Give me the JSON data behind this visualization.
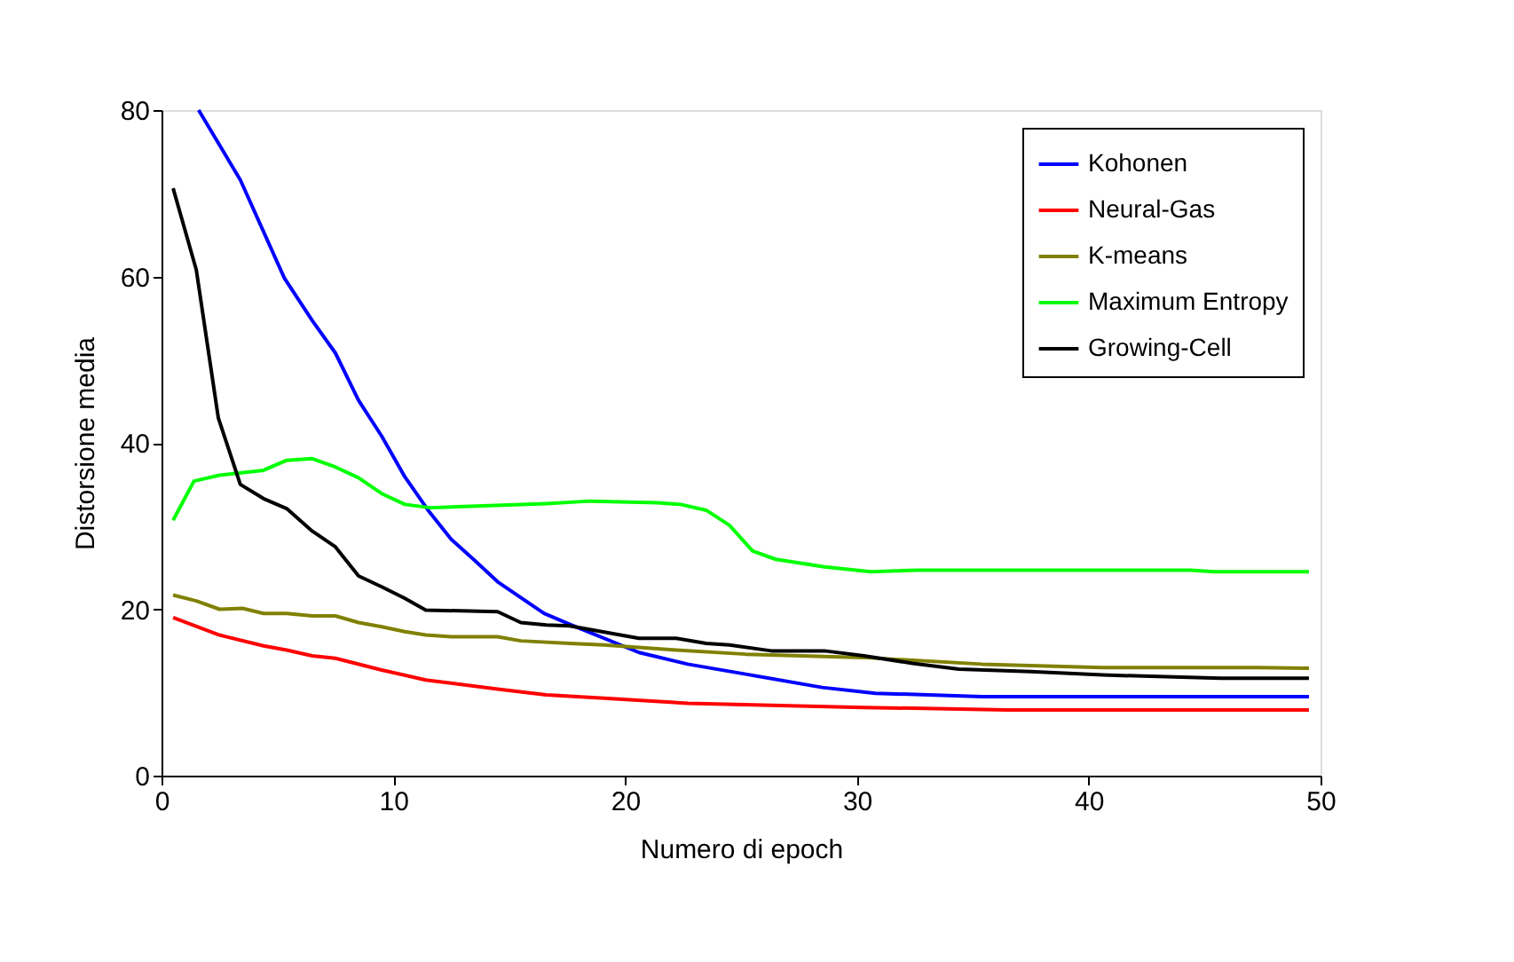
{
  "chart_data": {
    "type": "line",
    "xlabel": "Numero di epoch",
    "ylabel": "Distorsione media",
    "xlim": [
      0,
      50
    ],
    "xticks": [
      0,
      10,
      20,
      30,
      40,
      50
    ],
    "ylim": [
      0,
      80
    ],
    "yticks": [
      0,
      20,
      40,
      60,
      80
    ],
    "grid": false,
    "legend": "top right",
    "marker": "none",
    "line_style": "solid",
    "series": [
      {
        "name": "Kohonen",
        "color": "#0000ff",
        "x": [
          1.6,
          3.4,
          5.3,
          6.5,
          7.5,
          8.5,
          9.5,
          10.5,
          11.5,
          12.5,
          13.5,
          14.5,
          15.5,
          16.5,
          17.6,
          20.6,
          22.7,
          25.2,
          28.5,
          30.8,
          35.4,
          49.5
        ],
        "values": [
          80,
          71.6,
          59.8,
          54.7,
          50.8,
          45.1,
          40.8,
          35.9,
          31.9,
          28.4,
          25.9,
          23.3,
          21.4,
          19.5,
          18.2,
          14.8,
          13.4,
          12.2,
          10.6,
          9.9,
          9.5,
          9.5
        ]
      },
      {
        "name": "Neural-Gas",
        "color": "#ff0000",
        "x": [
          0.5,
          2.5,
          4.4,
          5.4,
          6.5,
          7.5,
          9.5,
          11.4,
          14.5,
          16.6,
          19.1,
          22.7,
          30.3,
          36.5,
          49.5
        ],
        "values": [
          19.0,
          16.9,
          15.6,
          15.1,
          14.4,
          14.1,
          12.7,
          11.5,
          10.4,
          9.7,
          9.3,
          8.7,
          8.2,
          7.9,
          7.9
        ]
      },
      {
        "name": "K-means",
        "color": "#808000",
        "x": [
          0.5,
          1.5,
          2.5,
          3.5,
          4.4,
          5.4,
          6.5,
          7.5,
          8.5,
          9.5,
          10.5,
          11.4,
          12.5,
          14.5,
          15.5,
          17.6,
          19.1,
          22.2,
          25.2,
          30.3,
          35.4,
          40.6,
          47.3,
          49.5
        ],
        "values": [
          21.7,
          21.0,
          20.0,
          20.1,
          19.5,
          19.5,
          19.2,
          19.2,
          18.4,
          17.9,
          17.3,
          16.9,
          16.7,
          16.7,
          16.2,
          15.9,
          15.7,
          15.1,
          14.6,
          14.2,
          13.4,
          13.0,
          13.0,
          12.9
        ]
      },
      {
        "name": "Maximum Entropy",
        "color": "#00ff00",
        "x": [
          0.5,
          1.4,
          2.5,
          4.4,
          5.4,
          6.5,
          7.5,
          8.5,
          9.5,
          10.5,
          11.6,
          16.6,
          18.5,
          21.4,
          22.4,
          23.5,
          24.5,
          25.5,
          26.5,
          28.6,
          30.6,
          32.6,
          44.4,
          45.4,
          49.5
        ],
        "values": [
          30.7,
          35.4,
          36.1,
          36.7,
          37.9,
          38.1,
          37.1,
          35.8,
          33.9,
          32.6,
          32.2,
          32.7,
          33.0,
          32.8,
          32.6,
          31.9,
          30.1,
          27.0,
          26.0,
          25.1,
          24.5,
          24.7,
          24.7,
          24.5,
          24.5
        ]
      },
      {
        "name": "Growing-Cell",
        "color": "#000000",
        "x": [
          0.5,
          1.5,
          2.45,
          3.4,
          4.4,
          5.4,
          6.5,
          7.5,
          8.5,
          9.5,
          10.5,
          11.4,
          14.5,
          15.5,
          16.6,
          17.6,
          20.6,
          22.2,
          23.5,
          24.5,
          26.3,
          28.6,
          30.3,
          32.4,
          34.4,
          37.5,
          40.6,
          45.7,
          49.5
        ],
        "values": [
          70.6,
          60.8,
          43.0,
          35.0,
          33.3,
          32.1,
          29.4,
          27.5,
          24.0,
          22.7,
          21.3,
          19.9,
          19.7,
          18.4,
          18.1,
          18.0,
          16.5,
          16.5,
          15.9,
          15.7,
          15.0,
          15.0,
          14.4,
          13.5,
          12.8,
          12.5,
          12.1,
          11.7,
          11.7
        ]
      }
    ]
  }
}
